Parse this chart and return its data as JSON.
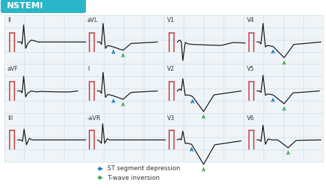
{
  "title": "NSTEMI",
  "title_bg": "#29b6c8",
  "title_text_color": "white",
  "bg_color": "white",
  "grid_color": "#c5d8e5",
  "leads": [
    {
      "name": "II",
      "row": 0,
      "col": 0,
      "type": "normal",
      "arrows": []
    },
    {
      "name": "aVL",
      "row": 0,
      "col": 1,
      "type": "st_tw",
      "arrows": [
        "blue",
        "green"
      ]
    },
    {
      "name": "V1",
      "row": 0,
      "col": 2,
      "type": "v1",
      "arrows": []
    },
    {
      "name": "V4",
      "row": 0,
      "col": 3,
      "type": "v4",
      "arrows": [
        "blue",
        "green"
      ]
    },
    {
      "name": "aVF",
      "row": 1,
      "col": 0,
      "type": "normal2",
      "arrows": []
    },
    {
      "name": "I",
      "row": 1,
      "col": 1,
      "type": "st_tw2",
      "arrows": [
        "blue",
        "green"
      ]
    },
    {
      "name": "V2",
      "row": 1,
      "col": 2,
      "type": "v2",
      "arrows": [
        "blue",
        "green"
      ]
    },
    {
      "name": "V5",
      "row": 1,
      "col": 3,
      "type": "v5",
      "arrows": [
        "blue",
        "green"
      ]
    },
    {
      "name": "III",
      "row": 2,
      "col": 0,
      "type": "normal3",
      "arrows": []
    },
    {
      "name": "-aVR",
      "row": 2,
      "col": 1,
      "type": "normal4",
      "arrows": []
    },
    {
      "name": "V3",
      "row": 2,
      "col": 2,
      "type": "v3",
      "arrows": [
        "blue",
        "green"
      ]
    },
    {
      "name": "V6",
      "row": 2,
      "col": 3,
      "type": "v6",
      "arrows": [
        "green"
      ]
    }
  ],
  "arrow_blue": "#1a7fc4",
  "arrow_green": "#3daa4e",
  "legend_items": [
    {
      "color": "#1a7fc4",
      "label": "ST segment depression"
    },
    {
      "color": "#3daa4e",
      "label": "T-wave inversion"
    }
  ]
}
